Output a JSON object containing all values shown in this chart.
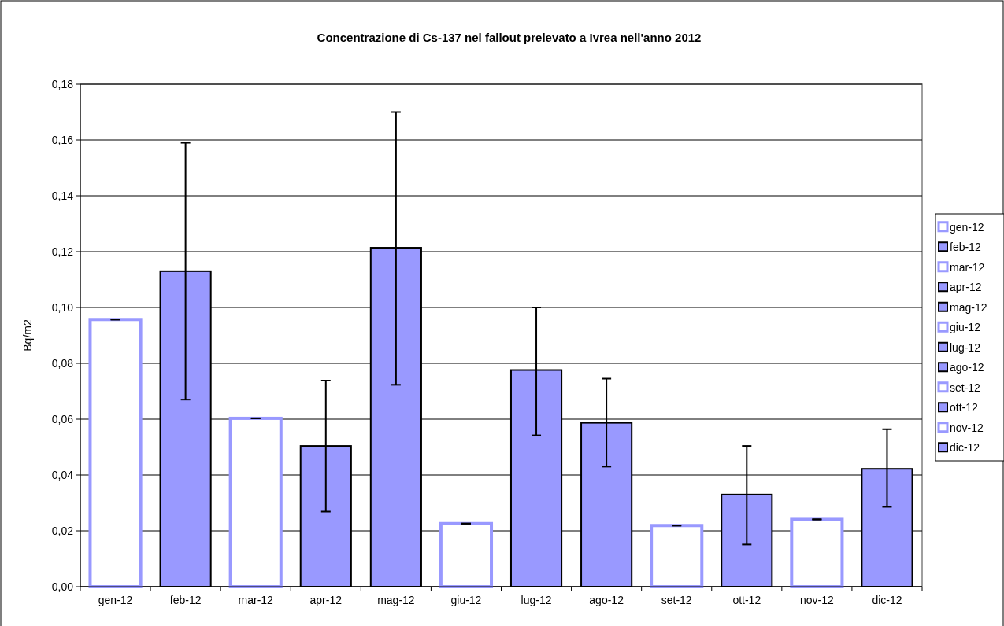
{
  "chart_data": {
    "type": "bar",
    "title": "Concentrazione di Cs-137 nel fallout prelevato a Ivrea nell'anno 2012",
    "ylabel": "Bq/m2",
    "categories": [
      "gen-12",
      "feb-12",
      "mar-12",
      "apr-12",
      "mag-12",
      "giu-12",
      "lug-12",
      "ago-12",
      "set-12",
      "ott-12",
      "nov-12",
      "dic-12"
    ],
    "color": "#9999ff",
    "series": [
      {
        "name": "gen-12",
        "color": "#ffffff",
        "values": [
          0.0957,
          null,
          null,
          null,
          null,
          null,
          null,
          null,
          null,
          null,
          null,
          null
        ],
        "errors": [
          0,
          null,
          null,
          null,
          null,
          null,
          null,
          null,
          null,
          null,
          null,
          null
        ]
      },
      {
        "name": "feb-12",
        "color": "#9999ff",
        "values": [
          null,
          0.113,
          null,
          null,
          null,
          null,
          null,
          null,
          null,
          null,
          null,
          null
        ],
        "errors": [
          null,
          [
            0.067,
            0.159
          ],
          null,
          null,
          null,
          null,
          null,
          null,
          null,
          null,
          null,
          null
        ]
      },
      {
        "name": "mar-12",
        "color": "#ffffff",
        "values": [
          null,
          null,
          0.0603,
          null,
          null,
          null,
          null,
          null,
          null,
          null,
          null,
          null
        ],
        "errors": [
          null,
          null,
          0,
          null,
          null,
          null,
          null,
          null,
          null,
          null,
          null,
          null
        ]
      },
      {
        "name": "apr-12",
        "color": "#9999ff",
        "values": [
          null,
          null,
          null,
          0.0504,
          null,
          null,
          null,
          null,
          null,
          null,
          null,
          null
        ],
        "errors": [
          null,
          null,
          null,
          [
            0.0269,
            0.0738
          ],
          null,
          null,
          null,
          null,
          null,
          null,
          null,
          null
        ]
      },
      {
        "name": "mag-12",
        "color": "#9999ff",
        "values": [
          null,
          null,
          null,
          null,
          0.1214,
          null,
          null,
          null,
          null,
          null,
          null,
          null
        ],
        "errors": [
          null,
          null,
          null,
          null,
          [
            0.0723,
            0.17
          ],
          null,
          null,
          null,
          null,
          null,
          null,
          null
        ]
      },
      {
        "name": "giu-12",
        "color": "#ffffff",
        "values": [
          null,
          null,
          null,
          null,
          null,
          0.0226,
          null,
          null,
          null,
          null,
          null,
          null
        ],
        "errors": [
          null,
          null,
          null,
          null,
          null,
          0,
          null,
          null,
          null,
          null,
          null,
          null
        ]
      },
      {
        "name": "lug-12",
        "color": "#9999ff",
        "values": [
          null,
          null,
          null,
          null,
          null,
          null,
          0.0776,
          null,
          null,
          null,
          null,
          null
        ],
        "errors": [
          null,
          null,
          null,
          null,
          null,
          null,
          [
            0.0542,
            0.1
          ],
          null,
          null,
          null,
          null,
          null
        ]
      },
      {
        "name": "ago-12",
        "color": "#9999ff",
        "values": [
          null,
          null,
          null,
          null,
          null,
          null,
          null,
          0.0587,
          null,
          null,
          null,
          null
        ],
        "errors": [
          null,
          null,
          null,
          null,
          null,
          null,
          null,
          [
            0.043,
            0.0745
          ],
          null,
          null,
          null,
          null
        ]
      },
      {
        "name": "set-12",
        "color": "#ffffff",
        "values": [
          null,
          null,
          null,
          null,
          null,
          null,
          null,
          null,
          0.0219,
          null,
          null,
          null
        ],
        "errors": [
          null,
          null,
          null,
          null,
          null,
          null,
          null,
          null,
          0,
          null,
          null,
          null
        ]
      },
      {
        "name": "ott-12",
        "color": "#9999ff",
        "values": [
          null,
          null,
          null,
          null,
          null,
          null,
          null,
          null,
          null,
          0.033,
          null,
          null
        ],
        "errors": [
          null,
          null,
          null,
          null,
          null,
          null,
          null,
          null,
          null,
          [
            0.0151,
            0.0504
          ],
          null,
          null
        ]
      },
      {
        "name": "nov-12",
        "color": "#ffffff",
        "values": [
          null,
          null,
          null,
          null,
          null,
          null,
          null,
          null,
          null,
          null,
          0.0241,
          null
        ],
        "errors": [
          null,
          null,
          null,
          null,
          null,
          null,
          null,
          null,
          null,
          null,
          0,
          null
        ]
      },
      {
        "name": "dic-12",
        "color": "#9999ff",
        "values": [
          null,
          null,
          null,
          null,
          null,
          null,
          null,
          null,
          null,
          null,
          null,
          0.0422
        ],
        "errors": [
          null,
          null,
          null,
          null,
          null,
          null,
          null,
          null,
          null,
          null,
          null,
          [
            0.0286,
            0.0564
          ]
        ]
      }
    ],
    "ylim": [
      0,
      0.18
    ],
    "yticks": [
      {
        "value": 0,
        "label": "0,00"
      },
      {
        "value": 0.02,
        "label": "0,02"
      },
      {
        "value": 0.04,
        "label": "0,04"
      },
      {
        "value": 0.06,
        "label": "0,06"
      },
      {
        "value": 0.08,
        "label": "0,08"
      },
      {
        "value": 0.1,
        "label": "0,10"
      },
      {
        "value": 0.12,
        "label": "0,12"
      },
      {
        "value": 0.14,
        "label": "0,14"
      },
      {
        "value": 0.16,
        "label": "0,16"
      },
      {
        "value": 0.18,
        "label": "0,18"
      }
    ],
    "grid": "y",
    "legend": "right"
  }
}
